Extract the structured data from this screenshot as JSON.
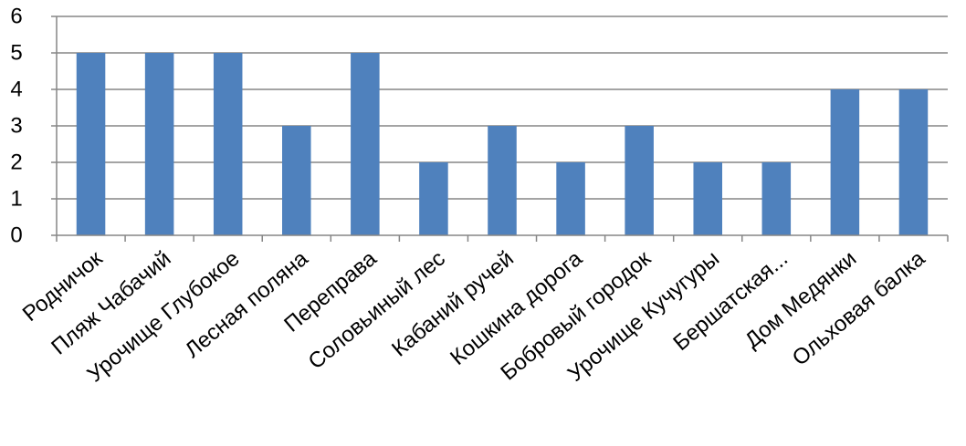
{
  "chart_data": {
    "type": "bar",
    "categories": [
      "Родничок",
      "Пляж Чабачий",
      "Урочище Глубокое",
      "Лесная поляна",
      "Переправа",
      "Соловьиный лес",
      "Кабаний ручей",
      "Кошкина дорога",
      "Бобровый городок",
      "Урочище Кучугуры",
      "Бершатская...",
      "Дом Медянки",
      "Ольховая балка"
    ],
    "values": [
      5,
      5,
      5,
      3,
      5,
      2,
      3,
      2,
      3,
      2,
      2,
      4,
      4
    ],
    "ylim": [
      0,
      6
    ],
    "yticks": [
      "0",
      "1",
      "2",
      "3",
      "4",
      "5",
      "6"
    ],
    "grid": true,
    "legend": "none",
    "colors": {
      "bar": "#4f81bd",
      "grid": "#868686",
      "axis": "#868686",
      "text": "#000000"
    }
  }
}
